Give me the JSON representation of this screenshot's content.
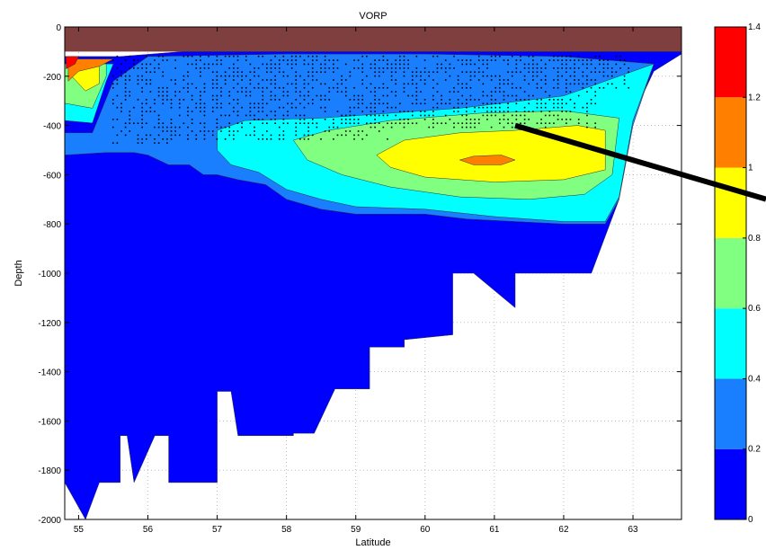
{
  "chart_data": {
    "type": "contour",
    "title": "VORP",
    "xlabel": "Latitude",
    "ylabel": "Depth",
    "xlim": [
      54.8,
      63.7
    ],
    "ylim": [
      -2000,
      0
    ],
    "xticks": [
      55,
      56,
      57,
      58,
      59,
      60,
      61,
      62,
      63
    ],
    "yticks": [
      0,
      -200,
      -400,
      -600,
      -800,
      -1000,
      -1200,
      -1400,
      -1600,
      -1800,
      -2000
    ],
    "grid": true,
    "colorbar": {
      "range": [
        0,
        1.4
      ],
      "ticks": [
        "0",
        "0.2",
        "0.4",
        "0.6",
        "0.8",
        "1",
        "1.2",
        "1.4"
      ],
      "levels": [
        {
          "from": 0.0,
          "to": 0.2,
          "color": "#0000ff"
        },
        {
          "from": 0.2,
          "to": 0.4,
          "color": "#1a7fff"
        },
        {
          "from": 0.4,
          "to": 0.6,
          "color": "#00ffff"
        },
        {
          "from": 0.6,
          "to": 0.8,
          "color": "#80ff80"
        },
        {
          "from": 0.8,
          "to": 1.0,
          "color": "#ffff00"
        },
        {
          "from": 1.0,
          "to": 1.2,
          "color": "#ff8000"
        },
        {
          "from": 1.2,
          "to": 1.4,
          "color": "#ff0000"
        }
      ]
    },
    "surface_layer": {
      "color": "#7f3f3f",
      "depth_range": [
        -100,
        0
      ]
    },
    "regions": [
      {
        "level": "0-0.2",
        "color": "#0000ff",
        "points": [
          [
            54.8,
            -120
          ],
          [
            55.6,
            -120
          ],
          [
            56.5,
            -100
          ],
          [
            58,
            -100
          ],
          [
            60,
            -100
          ],
          [
            62,
            -100
          ],
          [
            63.3,
            -100
          ],
          [
            63.7,
            -100
          ],
          [
            63.7,
            -110
          ],
          [
            63.3,
            -180
          ],
          [
            62.9,
            -420
          ],
          [
            62.8,
            -700
          ],
          [
            62.6,
            -850
          ],
          [
            62.4,
            -1000
          ],
          [
            61.3,
            -1000
          ],
          [
            61.3,
            -1140
          ],
          [
            60.7,
            -1000
          ],
          [
            60.4,
            -1000
          ],
          [
            60.4,
            -1250
          ],
          [
            59.7,
            -1270
          ],
          [
            59.7,
            -1300
          ],
          [
            59.2,
            -1300
          ],
          [
            59.2,
            -1470
          ],
          [
            58.7,
            -1470
          ],
          [
            58.4,
            -1650
          ],
          [
            58.1,
            -1650
          ],
          [
            58.1,
            -1660
          ],
          [
            57.3,
            -1660
          ],
          [
            57.2,
            -1480
          ],
          [
            57.0,
            -1480
          ],
          [
            57.0,
            -1850
          ],
          [
            56.3,
            -1850
          ],
          [
            56.3,
            -1660
          ],
          [
            56.1,
            -1660
          ],
          [
            55.8,
            -1850
          ],
          [
            55.7,
            -1660
          ],
          [
            55.6,
            -1660
          ],
          [
            55.6,
            -1850
          ],
          [
            55.3,
            -1850
          ],
          [
            55.1,
            -2000
          ],
          [
            54.8,
            -1850
          ]
        ]
      },
      {
        "level": "0.2-0.4",
        "color": "#1a7fff",
        "points": [
          [
            54.8,
            -430
          ],
          [
            55.2,
            -430
          ],
          [
            55.5,
            -220
          ],
          [
            56,
            -120
          ],
          [
            58,
            -110
          ],
          [
            60,
            -110
          ],
          [
            62,
            -120
          ],
          [
            63.3,
            -150
          ],
          [
            63.0,
            -400
          ],
          [
            62.8,
            -700
          ],
          [
            62.6,
            -800
          ],
          [
            62.0,
            -800
          ],
          [
            61.3,
            -790
          ],
          [
            60.6,
            -780
          ],
          [
            60,
            -760
          ],
          [
            59.5,
            -760
          ],
          [
            59,
            -760
          ],
          [
            58.5,
            -740
          ],
          [
            58,
            -700
          ],
          [
            57.7,
            -640
          ],
          [
            57.3,
            -620
          ],
          [
            57,
            -600
          ],
          [
            56.8,
            -600
          ],
          [
            56.6,
            -560
          ],
          [
            56.3,
            -560
          ],
          [
            56,
            -520
          ],
          [
            55.8,
            -510
          ],
          [
            55.4,
            -510
          ],
          [
            54.8,
            -520
          ]
        ]
      },
      {
        "level": "0.4-0.6",
        "color": "#00ffff",
        "points": [
          [
            54.8,
            -380
          ],
          [
            55.2,
            -390
          ],
          [
            55.4,
            -220
          ],
          [
            55.5,
            -150
          ],
          [
            54.8,
            -150
          ]
        ]
      },
      {
        "level": "0.4-0.6",
        "color": "#00ffff",
        "points": [
          [
            57.0,
            -420
          ],
          [
            57.4,
            -380
          ],
          [
            58.5,
            -370
          ],
          [
            60.5,
            -330
          ],
          [
            62.0,
            -280
          ],
          [
            63.3,
            -150
          ],
          [
            63.0,
            -380
          ],
          [
            62.8,
            -690
          ],
          [
            62.6,
            -790
          ],
          [
            62.0,
            -790
          ],
          [
            61.0,
            -770
          ],
          [
            60.0,
            -740
          ],
          [
            59.0,
            -730
          ],
          [
            58.5,
            -700
          ],
          [
            58.0,
            -660
          ],
          [
            57.6,
            -590
          ],
          [
            57.2,
            -560
          ],
          [
            57.0,
            -500
          ]
        ]
      },
      {
        "level": "0.6-0.8",
        "color": "#80ff80",
        "points": [
          [
            54.8,
            -310
          ],
          [
            55.2,
            -330
          ],
          [
            55.4,
            -200
          ],
          [
            55.4,
            -150
          ],
          [
            54.8,
            -150
          ]
        ]
      },
      {
        "level": "0.6-0.8",
        "color": "#80ff80",
        "points": [
          [
            58.1,
            -460
          ],
          [
            58.6,
            -420
          ],
          [
            59.5,
            -380
          ],
          [
            60.8,
            -350
          ],
          [
            62.0,
            -340
          ],
          [
            62.8,
            -370
          ],
          [
            62.7,
            -600
          ],
          [
            62.3,
            -680
          ],
          [
            61.5,
            -700
          ],
          [
            60.5,
            -690
          ],
          [
            59.5,
            -650
          ],
          [
            58.8,
            -600
          ],
          [
            58.3,
            -540
          ]
        ]
      },
      {
        "level": "0.8-1.0",
        "color": "#ffff00",
        "points": [
          [
            54.9,
            -200
          ],
          [
            55.1,
            -260
          ],
          [
            55.3,
            -230
          ],
          [
            55.3,
            -160
          ],
          [
            54.9,
            -160
          ]
        ]
      },
      {
        "level": "0.8-1.0",
        "color": "#ffff00",
        "points": [
          [
            59.3,
            -520
          ],
          [
            59.7,
            -460
          ],
          [
            60.5,
            -430
          ],
          [
            61.3,
            -420
          ],
          [
            62.2,
            -400
          ],
          [
            62.6,
            -420
          ],
          [
            62.6,
            -580
          ],
          [
            62.0,
            -620
          ],
          [
            61.0,
            -630
          ],
          [
            60.0,
            -610
          ],
          [
            59.5,
            -570
          ]
        ]
      },
      {
        "level": "1.0-1.2",
        "color": "#ff8000",
        "points": [
          [
            54.85,
            -130
          ],
          [
            55.5,
            -130
          ],
          [
            55.3,
            -160
          ],
          [
            55.0,
            -180
          ],
          [
            54.85,
            -220
          ]
        ]
      },
      {
        "level": "1.0-1.2",
        "color": "#ff8000",
        "points": [
          [
            60.5,
            -540
          ],
          [
            60.7,
            -525
          ],
          [
            61.1,
            -520
          ],
          [
            61.3,
            -540
          ],
          [
            61.1,
            -560
          ],
          [
            60.7,
            -560
          ]
        ]
      },
      {
        "level": "1.2-1.4",
        "color": "#ff0000",
        "points": [
          [
            54.82,
            -120
          ],
          [
            55.0,
            -120
          ],
          [
            54.95,
            -150
          ],
          [
            54.82,
            -170
          ]
        ]
      }
    ],
    "annotation_line": {
      "from": [
        61.3,
        -400
      ],
      "to": [
        64.2,
        -640
      ],
      "color": "#000000"
    },
    "sample_points_region": {
      "x_range": [
        55.5,
        63.0
      ],
      "depth_range": [
        -460,
        -100
      ]
    }
  }
}
